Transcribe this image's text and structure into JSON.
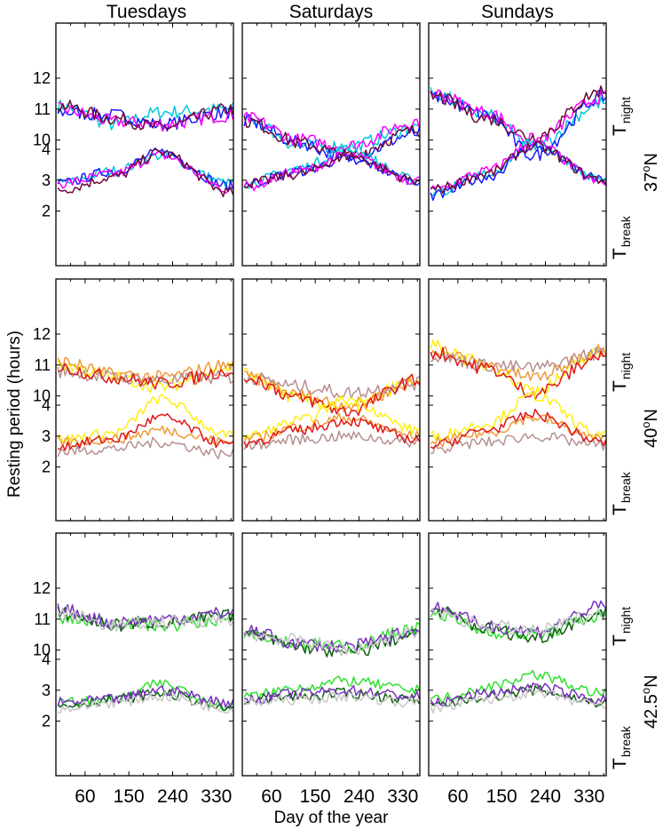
{
  "chart_data": {
    "type": "line",
    "ylabel": "Resting period (hours)",
    "xlabel": "Day of the year",
    "columns": [
      "Tuesdays",
      "Saturdays",
      "Sundays"
    ],
    "x_ticks": [
      60,
      150,
      240,
      330
    ],
    "x_tick_labels": [
      "60",
      "150",
      "240",
      "330"
    ],
    "xlim": [
      0,
      365
    ],
    "y_ticks": [
      2,
      3,
      4,
      10,
      11,
      12
    ],
    "y_tick_labels": [
      "2",
      "3",
      "4",
      "10",
      "11",
      "12"
    ],
    "series_labels": {
      "night_main": "T",
      "night_sub": "night",
      "break_main": "T",
      "break_sub": "break"
    },
    "rows": [
      {
        "latitude_number": "37",
        "degree": "o",
        "hemisphere": "N",
        "colors": [
          "#00c8d8",
          "#1a1aff",
          "#ff00ff",
          "#6a0a3a"
        ],
        "panels": [
          {
            "night": [
              [
                11.1,
                10.5,
                10.9,
                11.0
              ],
              [
                10.9,
                10.8,
                10.5,
                10.9
              ],
              [
                11.0,
                10.6,
                10.5,
                10.8
              ],
              [
                11.1,
                10.7,
                10.4,
                11.0
              ]
            ],
            "break": [
              [
                2.9,
                3.3,
                3.8,
                2.9
              ],
              [
                2.9,
                3.3,
                3.9,
                2.8
              ],
              [
                2.9,
                3.2,
                3.8,
                2.7
              ],
              [
                2.7,
                3.1,
                3.9,
                2.6
              ]
            ]
          },
          {
            "night": [
              [
                10.7,
                9.8,
                9.8,
                10.4
              ],
              [
                10.6,
                9.9,
                9.4,
                10.2
              ],
              [
                10.7,
                10.0,
                9.8,
                10.6
              ],
              [
                10.6,
                9.9,
                9.5,
                10.3
              ]
            ],
            "break": [
              [
                2.9,
                3.4,
                4.0,
                3.0
              ],
              [
                2.9,
                3.3,
                3.7,
                3.0
              ],
              [
                2.8,
                3.3,
                3.8,
                3.0
              ],
              [
                2.9,
                3.2,
                3.8,
                3.0
              ]
            ]
          },
          {
            "night": [
              [
                11.5,
                10.8,
                9.8,
                11.2
              ],
              [
                11.4,
                10.8,
                9.5,
                11.4
              ],
              [
                11.5,
                10.9,
                10.0,
                11.4
              ],
              [
                11.4,
                10.7,
                10.1,
                11.6
              ]
            ],
            "break": [
              [
                2.6,
                3.2,
                4.2,
                3.0
              ],
              [
                2.5,
                3.1,
                4.1,
                3.0
              ],
              [
                2.7,
                3.3,
                4.2,
                2.9
              ],
              [
                2.7,
                3.2,
                4.1,
                3.0
              ]
            ]
          }
        ]
      },
      {
        "latitude_number": "40",
        "degree": "o",
        "hemisphere": "N",
        "colors": [
          "#ffee10",
          "#ee9a3a",
          "#b89090",
          "#e01818"
        ],
        "panels": [
          {
            "night": [
              [
                11.0,
                10.6,
                10.3,
                10.9
              ],
              [
                11.1,
                10.7,
                10.6,
                11.0
              ],
              [
                10.8,
                10.6,
                10.5,
                10.6
              ],
              [
                10.9,
                10.6,
                10.4,
                10.8
              ]
            ],
            "break": [
              [
                2.9,
                3.1,
                4.2,
                3.0
              ],
              [
                2.8,
                2.9,
                3.2,
                2.8
              ],
              [
                2.5,
                2.6,
                2.8,
                2.4
              ],
              [
                2.7,
                2.9,
                3.6,
                2.7
              ]
            ]
          },
          {
            "night": [
              [
                10.7,
                9.9,
                9.6,
                10.5
              ],
              [
                10.6,
                10.0,
                9.7,
                10.4
              ],
              [
                10.6,
                10.3,
                10.1,
                10.4
              ],
              [
                10.6,
                9.9,
                9.5,
                10.5
              ]
            ],
            "break": [
              [
                3.0,
                3.5,
                4.2,
                3.2
              ],
              [
                2.9,
                3.3,
                3.6,
                3.0
              ],
              [
                2.7,
                2.9,
                3.0,
                2.8
              ],
              [
                2.8,
                3.2,
                3.5,
                2.9
              ]
            ]
          },
          {
            "night": [
              [
                11.6,
                11.0,
                10.2,
                11.4
              ],
              [
                11.5,
                11.0,
                10.6,
                11.5
              ],
              [
                11.3,
                11.0,
                10.9,
                11.4
              ],
              [
                11.4,
                10.9,
                10.1,
                11.3
              ]
            ],
            "break": [
              [
                3.0,
                3.4,
                4.3,
                3.0
              ],
              [
                2.8,
                3.1,
                3.6,
                2.9
              ],
              [
                2.6,
                2.8,
                3.0,
                2.7
              ],
              [
                2.7,
                3.2,
                3.7,
                2.8
              ]
            ]
          }
        ]
      },
      {
        "latitude_number": "42.5",
        "degree": "o",
        "hemisphere": "N",
        "colors": [
          "#30e030",
          "#106010",
          "#7a30c0",
          "#c8c8c8"
        ],
        "panels": [
          {
            "night": [
              [
                11.0,
                10.9,
                10.8,
                11.0
              ],
              [
                11.2,
                10.8,
                10.9,
                11.1
              ],
              [
                11.3,
                10.9,
                11.0,
                11.2
              ],
              [
                11.2,
                10.8,
                10.9,
                11.0
              ]
            ],
            "break": [
              [
                2.6,
                2.7,
                3.2,
                2.5
              ],
              [
                2.5,
                2.7,
                2.9,
                2.4
              ],
              [
                2.6,
                2.7,
                3.0,
                2.6
              ],
              [
                2.4,
                2.6,
                2.8,
                2.4
              ]
            ]
          },
          {
            "night": [
              [
                10.6,
                10.2,
                10.1,
                10.7
              ],
              [
                10.5,
                10.1,
                9.9,
                10.5
              ],
              [
                10.6,
                10.2,
                10.1,
                10.6
              ],
              [
                10.5,
                10.3,
                10.0,
                10.6
              ]
            ],
            "break": [
              [
                2.8,
                3.1,
                3.3,
                3.0
              ],
              [
                2.7,
                2.8,
                2.9,
                2.7
              ],
              [
                2.7,
                2.9,
                3.0,
                2.8
              ],
              [
                2.6,
                2.7,
                2.8,
                2.6
              ]
            ]
          },
          {
            "night": [
              [
                11.2,
                10.6,
                10.5,
                11.1
              ],
              [
                11.3,
                10.7,
                10.4,
                11.2
              ],
              [
                11.4,
                10.8,
                10.6,
                11.4
              ],
              [
                11.2,
                10.8,
                10.6,
                11.2
              ]
            ],
            "break": [
              [
                2.7,
                3.1,
                3.5,
                2.9
              ],
              [
                2.5,
                2.8,
                3.0,
                2.6
              ],
              [
                2.6,
                2.9,
                3.1,
                2.7
              ],
              [
                2.4,
                2.7,
                2.9,
                2.5
              ]
            ]
          }
        ]
      }
    ]
  }
}
